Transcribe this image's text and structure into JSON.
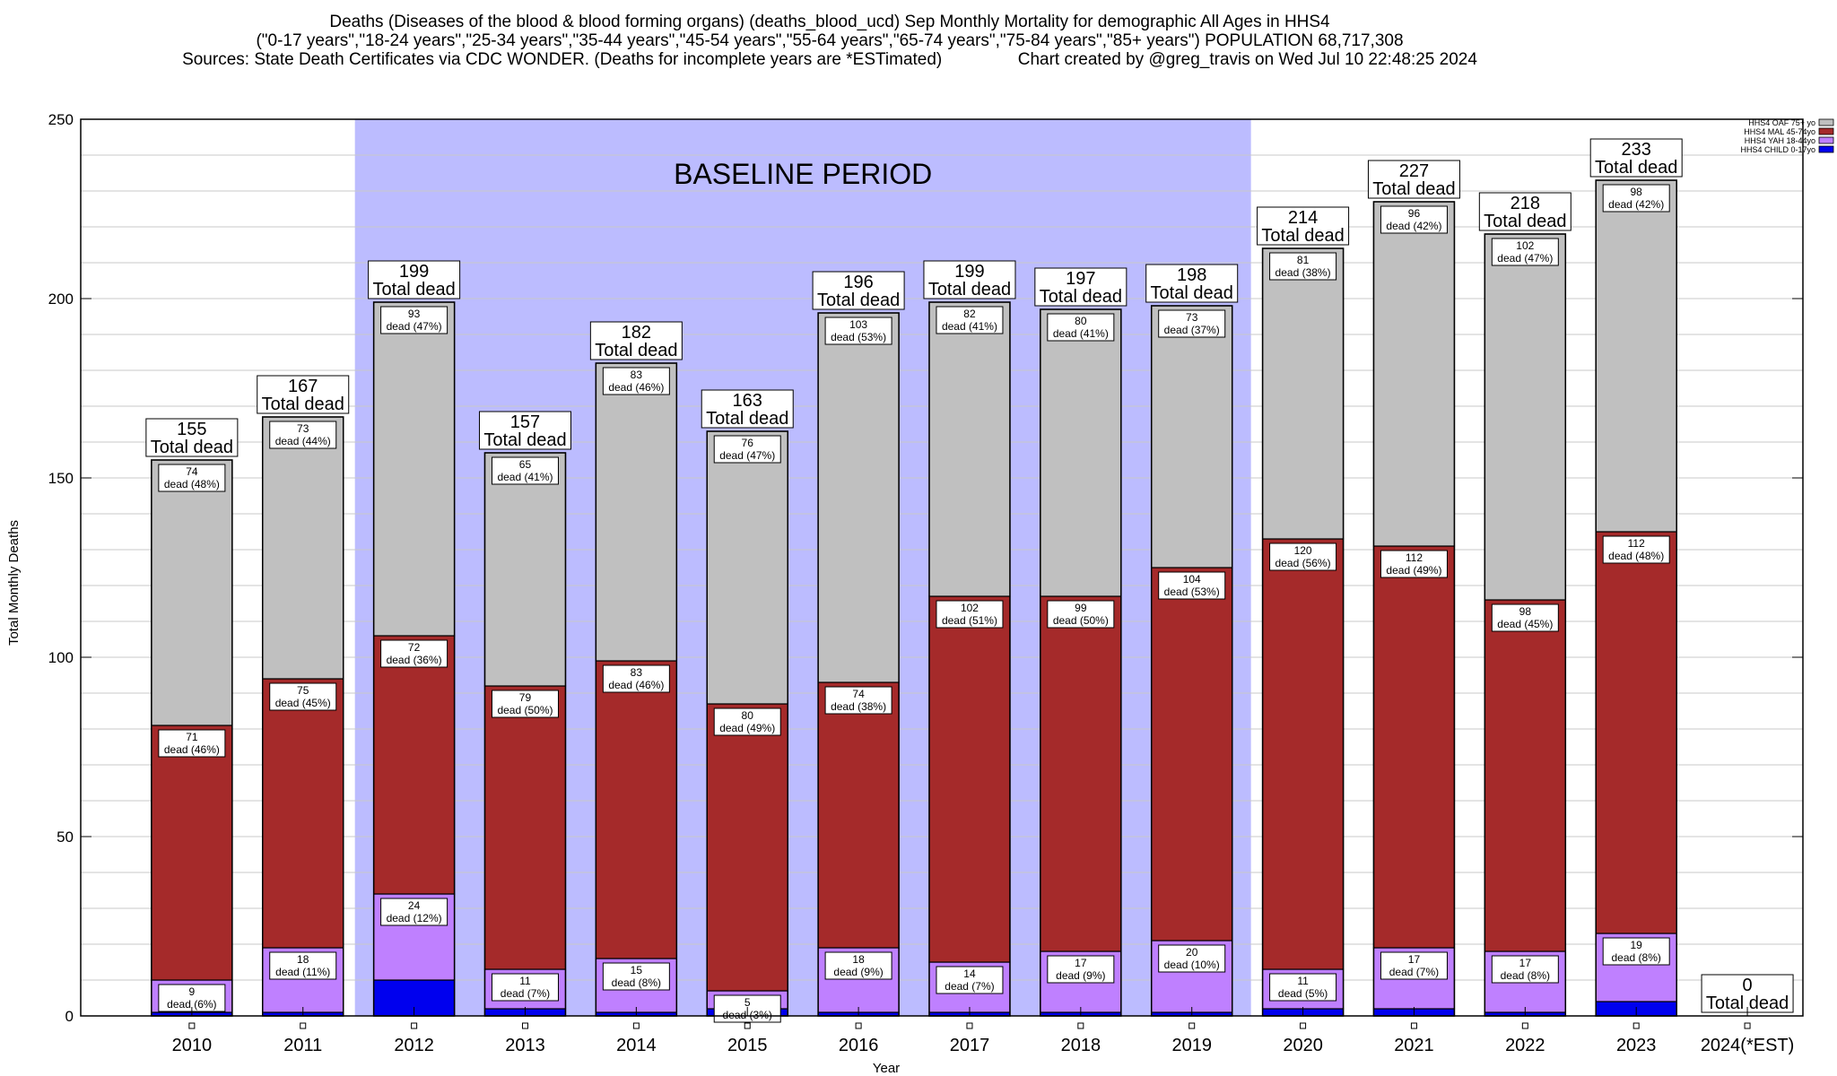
{
  "chart_data": {
    "type": "bar",
    "stacked": true,
    "title_lines": [
      "Deaths (Diseases of the blood & blood forming organs) (deaths_blood_ucd) Sep Monthly Mortality for demographic All Ages in HHS4",
      "(\"0-17 years\",\"18-24 years\",\"25-34 years\",\"35-44 years\",\"45-54 years\",\"55-64 years\",\"65-74 years\",\"75-84 years\",\"85+ years\") POPULATION 68,717,308",
      "Sources: State Death Certificates via CDC WONDER. (Deaths for incomplete years are *ESTimated)                Chart created by @greg_travis on Wed Jul 10 22:48:25 2024"
    ],
    "xlabel": "Year",
    "ylabel": "Total Monthly Deaths",
    "ylim": [
      0,
      250
    ],
    "yticks": [
      0,
      50,
      100,
      150,
      200,
      250
    ],
    "grid": true,
    "legend_position": "top-right",
    "baseline_label": "BASELINE PERIOD",
    "baseline_range": [
      "2012",
      "2019"
    ],
    "total_suffix": "Total dead",
    "categories": [
      "2010",
      "2011",
      "2012",
      "2013",
      "2014",
      "2015",
      "2016",
      "2017",
      "2018",
      "2019",
      "2020",
      "2021",
      "2022",
      "2023",
      "2024(*EST)"
    ],
    "totals": [
      155,
      167,
      199,
      157,
      182,
      163,
      196,
      199,
      197,
      198,
      214,
      227,
      218,
      233,
      0
    ],
    "series": [
      {
        "name": "HHS4 CHILD 0-17yo",
        "color": "#0000ee",
        "values": [
          1,
          1,
          10,
          2,
          1,
          2,
          1,
          1,
          1,
          1,
          2,
          2,
          1,
          4,
          0
        ],
        "labels": []
      },
      {
        "name": "HHS4 YAH 18-44yo",
        "color": "#bf80ff",
        "values": [
          9,
          18,
          24,
          11,
          15,
          5,
          18,
          14,
          17,
          20,
          11,
          17,
          17,
          19,
          0
        ],
        "labels": [
          "dead (6%)",
          "dead (11%)",
          "dead (12%)",
          "dead (7%)",
          "dead (8%)",
          "dead (3%)",
          "dead (9%)",
          "dead (7%)",
          "dead (9%)",
          "dead (10%)",
          "dead (5%)",
          "dead (7%)",
          "dead (8%)",
          "dead (8%)",
          ""
        ]
      },
      {
        "name": "HHS4 MAL 45-74yo",
        "color": "#a52a2a",
        "values": [
          71,
          75,
          72,
          79,
          83,
          80,
          74,
          102,
          99,
          104,
          120,
          112,
          98,
          112,
          0
        ],
        "labels": [
          "dead (46%)",
          "dead (45%)",
          "dead (36%)",
          "dead (50%)",
          "dead (46%)",
          "dead (49%)",
          "dead (38%)",
          "dead (51%)",
          "dead (50%)",
          "dead (53%)",
          "dead (56%)",
          "dead (49%)",
          "dead (45%)",
          "dead (48%)",
          ""
        ]
      },
      {
        "name": "HHS4 OAF 75+ yo",
        "color": "#c0c0c0",
        "values": [
          74,
          73,
          93,
          65,
          83,
          76,
          103,
          82,
          80,
          73,
          81,
          96,
          102,
          98,
          0
        ],
        "labels": [
          "dead (48%)",
          "dead (44%)",
          "dead (47%)",
          "dead (41%)",
          "dead (46%)",
          "dead (47%)",
          "dead (53%)",
          "dead (41%)",
          "dead (41%)",
          "dead (37%)",
          "dead (38%)",
          "dead (42%)",
          "dead (47%)",
          "dead (42%)",
          ""
        ]
      }
    ]
  }
}
